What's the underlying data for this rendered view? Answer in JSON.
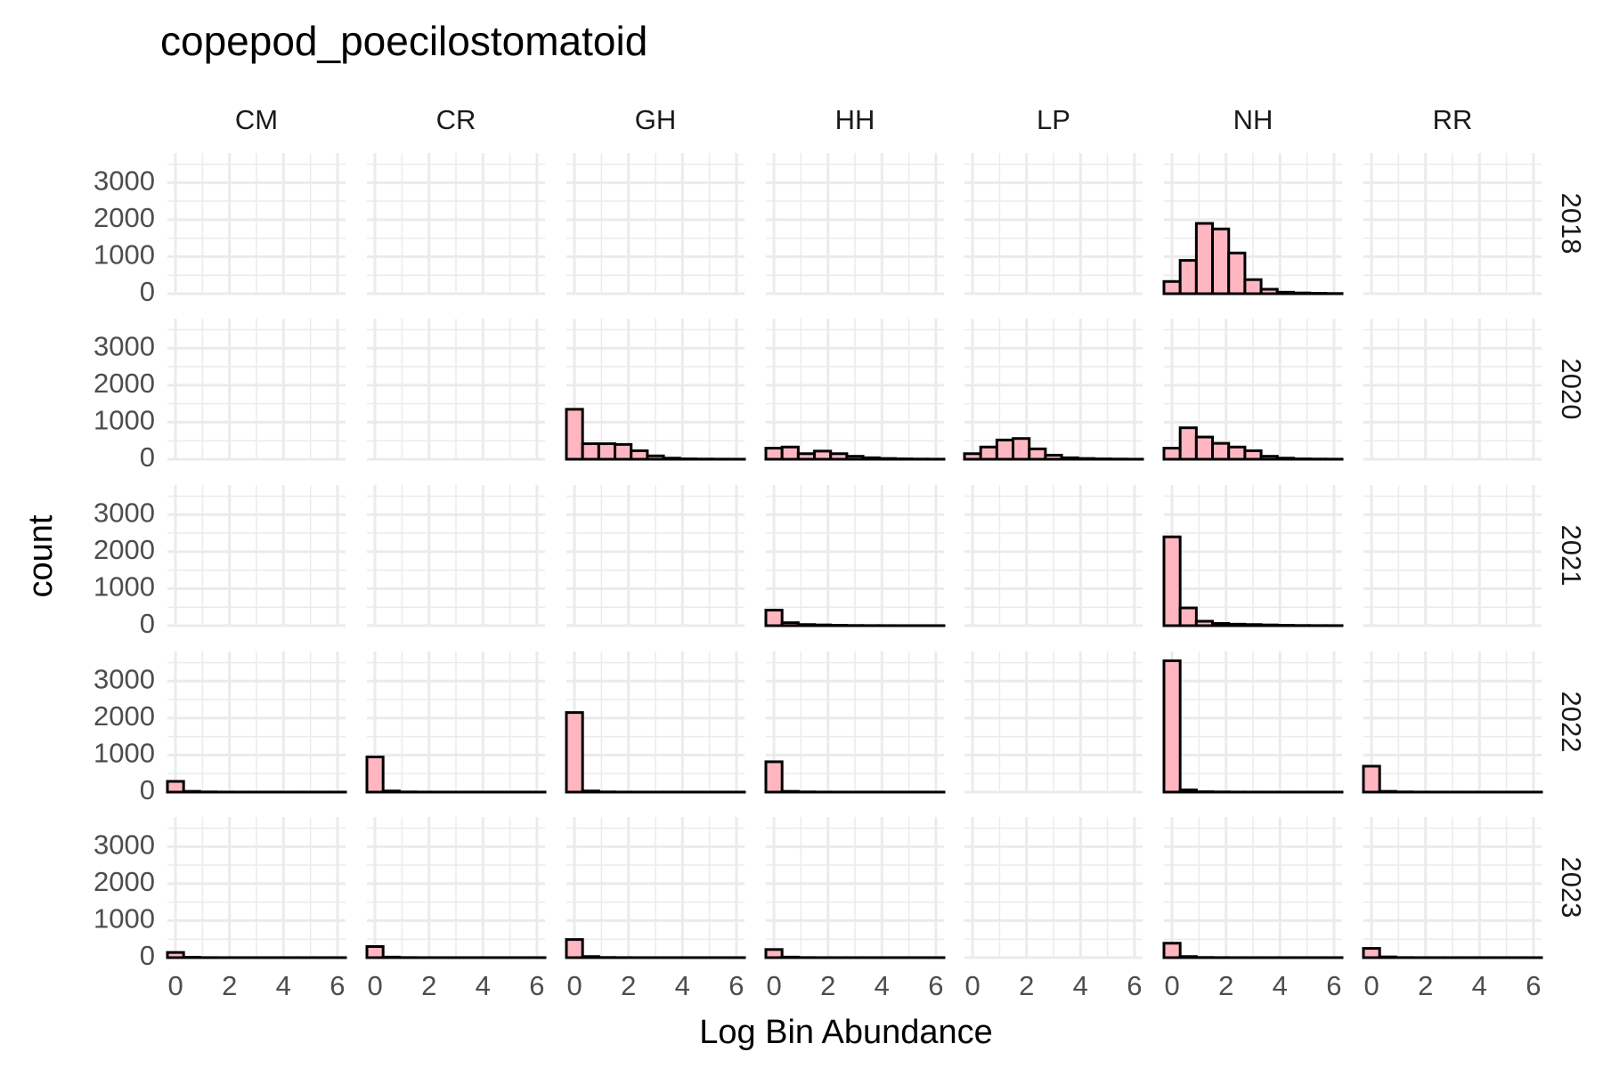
{
  "chart_data": {
    "type": "bar",
    "subtype": "faceted histogram",
    "title": "copepod_poecilostomatoid",
    "xlabel": "Log Bin Abundance",
    "ylabel": "count",
    "columns": [
      "CM",
      "CR",
      "GH",
      "HH",
      "LP",
      "NH",
      "RR"
    ],
    "rows": [
      "2018",
      "2020",
      "2021",
      "2022",
      "2023"
    ],
    "xlim": [
      -0.3,
      6.3
    ],
    "ylim": [
      0,
      3800
    ],
    "x_ticks": [
      0,
      2,
      4,
      6
    ],
    "y_ticks": [
      0,
      1000,
      2000,
      3000
    ],
    "grid": true,
    "bar_fill": "#ffb6c1",
    "bar_outline": "#000000",
    "bin_width": 0.6,
    "bin_centers": [
      0,
      0.6,
      1.2,
      1.8,
      2.4,
      3.0,
      3.6,
      4.2,
      4.8,
      5.4,
      6.0
    ],
    "panels": [
      {
        "column": "NH",
        "row": "2018",
        "counts": [
          330,
          900,
          1900,
          1750,
          1100,
          380,
          120,
          40,
          20,
          10,
          5
        ]
      },
      {
        "column": "GH",
        "row": "2020",
        "counts": [
          1350,
          420,
          420,
          400,
          230,
          90,
          30,
          10,
          5,
          3,
          2
        ]
      },
      {
        "column": "HH",
        "row": "2020",
        "counts": [
          300,
          330,
          150,
          220,
          150,
          80,
          40,
          20,
          10,
          5,
          3
        ]
      },
      {
        "column": "LP",
        "row": "2020",
        "counts": [
          150,
          330,
          520,
          560,
          280,
          110,
          40,
          20,
          10,
          5,
          2
        ]
      },
      {
        "column": "NH",
        "row": "2020",
        "counts": [
          300,
          850,
          600,
          430,
          330,
          230,
          80,
          30,
          10,
          5,
          3
        ]
      },
      {
        "column": "HH",
        "row": "2021",
        "counts": [
          420,
          80,
          30,
          20,
          10,
          5,
          3,
          2,
          1,
          1,
          1
        ]
      },
      {
        "column": "NH",
        "row": "2021",
        "counts": [
          2400,
          480,
          120,
          60,
          40,
          30,
          20,
          10,
          5,
          3,
          2
        ]
      },
      {
        "column": "CM",
        "row": "2022",
        "counts": [
          290,
          20,
          5,
          2,
          1,
          1,
          1,
          1,
          1,
          1,
          1
        ]
      },
      {
        "column": "CR",
        "row": "2022",
        "counts": [
          950,
          30,
          5,
          2,
          1,
          1,
          1,
          1,
          1,
          1,
          1
        ]
      },
      {
        "column": "GH",
        "row": "2022",
        "counts": [
          2150,
          30,
          5,
          2,
          1,
          1,
          1,
          1,
          1,
          1,
          1
        ]
      },
      {
        "column": "HH",
        "row": "2022",
        "counts": [
          820,
          20,
          5,
          2,
          1,
          1,
          1,
          1,
          1,
          1,
          1
        ]
      },
      {
        "column": "NH",
        "row": "2022",
        "counts": [
          3550,
          60,
          10,
          5,
          2,
          1,
          1,
          1,
          1,
          1,
          1
        ]
      },
      {
        "column": "RR",
        "row": "2022",
        "counts": [
          700,
          20,
          5,
          2,
          1,
          1,
          1,
          1,
          1,
          1,
          1
        ]
      },
      {
        "column": "CM",
        "row": "2023",
        "counts": [
          140,
          10,
          2,
          1,
          1,
          1,
          1,
          1,
          1,
          1,
          1
        ]
      },
      {
        "column": "CR",
        "row": "2023",
        "counts": [
          300,
          15,
          3,
          1,
          1,
          1,
          1,
          1,
          1,
          1,
          1
        ]
      },
      {
        "column": "GH",
        "row": "2023",
        "counts": [
          490,
          30,
          5,
          2,
          1,
          1,
          1,
          1,
          1,
          1,
          1
        ]
      },
      {
        "column": "HH",
        "row": "2023",
        "counts": [
          220,
          15,
          3,
          1,
          1,
          1,
          1,
          1,
          1,
          1,
          1
        ]
      },
      {
        "column": "NH",
        "row": "2023",
        "counts": [
          390,
          30,
          5,
          2,
          1,
          1,
          1,
          1,
          1,
          1,
          1
        ]
      },
      {
        "column": "RR",
        "row": "2023",
        "counts": [
          250,
          20,
          3,
          1,
          1,
          1,
          1,
          1,
          1,
          1,
          1
        ]
      }
    ]
  }
}
